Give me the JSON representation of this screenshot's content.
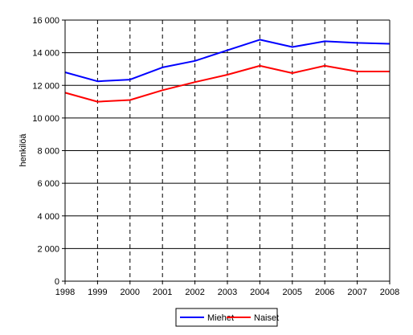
{
  "chart_data": {
    "type": "line",
    "title": "",
    "xlabel": "",
    "ylabel": "henkilöä",
    "x": [
      1998,
      1999,
      2000,
      2001,
      2002,
      2003,
      2004,
      2005,
      2006,
      2007,
      2008
    ],
    "y_ticks": [
      "0",
      "2 000",
      "4 000",
      "6 000",
      "8 000",
      "10 000",
      "12 000",
      "14 000",
      "16 000"
    ],
    "y_tick_values": [
      0,
      2000,
      4000,
      6000,
      8000,
      10000,
      12000,
      14000,
      16000
    ],
    "ylim": [
      0,
      16000
    ],
    "grid": {
      "horizontal": "solid",
      "vertical": "dashed"
    },
    "legend_position": "bottom",
    "series": [
      {
        "name": "Miehet",
        "color": "#0000ff",
        "values": [
          12800,
          12250,
          12350,
          13100,
          13500,
          14150,
          14800,
          14350,
          14700,
          14600,
          14550
        ]
      },
      {
        "name": "Naiset",
        "color": "#ff0000",
        "values": [
          11550,
          11000,
          11100,
          11700,
          12200,
          12650,
          13200,
          12750,
          13200,
          12850,
          12850
        ]
      }
    ]
  }
}
